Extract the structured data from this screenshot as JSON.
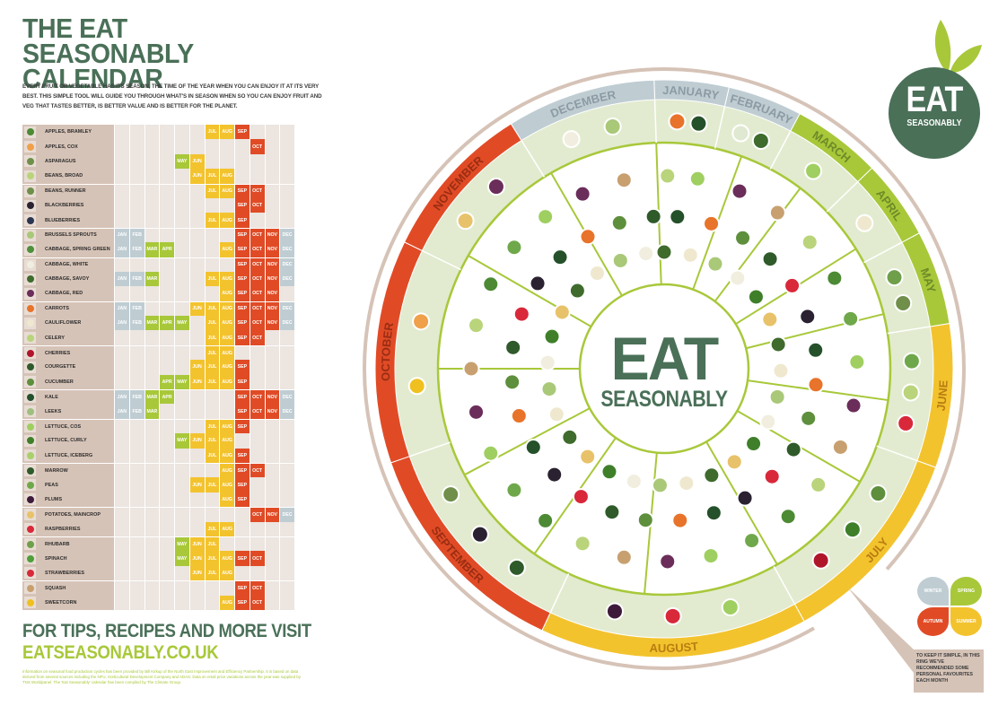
{
  "header": {
    "title": "THE EAT SEASONABLY CALENDAR",
    "intro": "EVERY FRUIT OR VEGETABLE HAS ITS SEASON, THE TIME OF THE YEAR WHEN YOU CAN ENJOY IT AT ITS VERY BEST. THIS SIMPLE TOOL WILL GUIDE YOU THROUGH WHAT'S IN SEASON WHEN SO YOU CAN ENJOY FRUIT AND VEG THAT TASTES BETTER, IS BETTER VALUE AND IS BETTER FOR THE PLANET."
  },
  "colors": {
    "brand_green": "#4a7058",
    "winter": "#bfcdd3",
    "spring": "#a8c83a",
    "summer": "#f3c32e",
    "autumn": "#e04b26",
    "empty": "#ece5e0",
    "name_bg": "#d6c3b7",
    "ring_tan": "#d6c3b7",
    "ring_light_green": "#e2ebcf"
  },
  "month_abbr": [
    "JAN",
    "FEB",
    "MAR",
    "APR",
    "MAY",
    "JUN",
    "JUL",
    "AUG",
    "SEP",
    "OCT",
    "NOV",
    "DEC"
  ],
  "produce": [
    {
      "name": "APPLES, BRAMLEY",
      "icon": "#4c8a34",
      "group": 1,
      "months": [
        7,
        8,
        9
      ]
    },
    {
      "name": "APPLES, COX",
      "icon": "#f0a04a",
      "group": 0,
      "months": [
        10
      ]
    },
    {
      "name": "ASPARAGUS",
      "icon": "#6f8f4a",
      "group": 0,
      "months": [
        5,
        6
      ]
    },
    {
      "name": "BEANS, BROAD",
      "icon": "#b9d47a",
      "group": 0,
      "months": [
        6,
        7,
        8
      ]
    },
    {
      "name": "BEANS, RUNNER",
      "icon": "#6f8f4a",
      "group": 1,
      "months": [
        7,
        8,
        9,
        10
      ]
    },
    {
      "name": "BLACKBERRIES",
      "icon": "#2a2230",
      "group": 0,
      "months": [
        9,
        10
      ]
    },
    {
      "name": "BLUEBERRIES",
      "icon": "#2c3550",
      "group": 0,
      "months": [
        7,
        8,
        9
      ]
    },
    {
      "name": "BRUSSELS SPROUTS",
      "icon": "#a9c878",
      "group": 1,
      "months": [
        1,
        2,
        9,
        10,
        11,
        12
      ]
    },
    {
      "name": "CABBAGE, SPRING GREEN",
      "icon": "#4f8f3a",
      "group": 0,
      "months": [
        1,
        2,
        3,
        4,
        8,
        9,
        10,
        11,
        12
      ]
    },
    {
      "name": "CABBAGE, WHITE",
      "icon": "#f1eedf",
      "group": 1,
      "months": [
        9,
        10,
        11,
        12
      ]
    },
    {
      "name": "CABBAGE, SAVOY",
      "icon": "#3f6b2d",
      "group": 0,
      "months": [
        1,
        2,
        3,
        7,
        8,
        9,
        10,
        11,
        12
      ]
    },
    {
      "name": "CABBAGE, RED",
      "icon": "#6b2d5a",
      "group": 0,
      "months": [
        8,
        9,
        10,
        11
      ]
    },
    {
      "name": "CARROTS",
      "icon": "#e8732a",
      "group": 1,
      "months": [
        1,
        2,
        6,
        7,
        8,
        9,
        10,
        11,
        12
      ]
    },
    {
      "name": "CAULIFLOWER",
      "icon": "#efe8cf",
      "group": 0,
      "months": [
        1,
        2,
        3,
        4,
        5,
        7,
        8,
        9,
        10,
        11,
        12
      ]
    },
    {
      "name": "CELERY",
      "icon": "#b9d47a",
      "group": 0,
      "months": [
        7,
        8,
        9,
        10
      ]
    },
    {
      "name": "CHERRIES",
      "icon": "#b0162a",
      "group": 1,
      "months": [
        7,
        8
      ]
    },
    {
      "name": "COURGETTE",
      "icon": "#2f5a2a",
      "group": 0,
      "months": [
        6,
        7,
        8,
        9
      ]
    },
    {
      "name": "CUCUMBER",
      "icon": "#5e8f3c",
      "group": 0,
      "months": [
        4,
        5,
        6,
        7,
        8,
        9
      ]
    },
    {
      "name": "KALE",
      "icon": "#24502a",
      "group": 1,
      "months": [
        1,
        2,
        3,
        4,
        9,
        10,
        11,
        12
      ]
    },
    {
      "name": "LEEKS",
      "icon": "#9fbf80",
      "group": 0,
      "months": [
        1,
        2,
        3,
        9,
        10,
        11,
        12
      ]
    },
    {
      "name": "LETTUCE, COS",
      "icon": "#9fcf60",
      "group": 1,
      "months": [
        7,
        8,
        9
      ]
    },
    {
      "name": "LETTUCE, CURLY",
      "icon": "#3f7f2a",
      "group": 0,
      "months": [
        5,
        6,
        7,
        8
      ]
    },
    {
      "name": "LETTUCE, ICEBERG",
      "icon": "#a9d06a",
      "group": 0,
      "months": [
        7,
        8,
        9
      ]
    },
    {
      "name": "MARROW",
      "icon": "#2f5a2a",
      "group": 1,
      "months": [
        8,
        9,
        10
      ]
    },
    {
      "name": "PEAS",
      "icon": "#6fa84a",
      "group": 0,
      "months": [
        6,
        7,
        8,
        9
      ]
    },
    {
      "name": "PLUMS",
      "icon": "#3e1a3a",
      "group": 0,
      "months": [
        8,
        9
      ]
    },
    {
      "name": "POTATOES, MAINCROP",
      "icon": "#e8c26a",
      "group": 1,
      "months": [
        10,
        11,
        12
      ]
    },
    {
      "name": "RASPBERRIES",
      "icon": "#d8283a",
      "group": 0,
      "months": [
        7,
        8
      ]
    },
    {
      "name": "RHUBARB",
      "icon": "#6f9f4a",
      "group": 1,
      "months": [
        5,
        6,
        7
      ]
    },
    {
      "name": "SPINACH",
      "icon": "#4f9f3a",
      "group": 0,
      "months": [
        5,
        6,
        7,
        8,
        9,
        10
      ]
    },
    {
      "name": "STRAWBERRIES",
      "icon": "#d8283a",
      "group": 0,
      "months": [
        6,
        7,
        8
      ]
    },
    {
      "name": "SQUASH",
      "icon": "#c8a070",
      "group": 1,
      "months": [
        9,
        10
      ]
    },
    {
      "name": "SWEETCORN",
      "icon": "#f0c020",
      "group": 0,
      "months": [
        8,
        9,
        10
      ]
    }
  ],
  "footer": {
    "cta_line1": "FOR TIPS, RECIPES AND MORE VISIT",
    "cta_line2": "EATSEASONABLY.CO.UK",
    "credits": "Information on seasonal food production cycles has been provided by Bill Kirkup of the North East Improvement and Efficiency Partnership. It is based on data derived from several sources including the NFU, Horticultural Development Company and ADAS. Data on retail price variations across the year was supplied by TNS Worldpanel. The 'Eat Seasonably' calendar has been compiled by The Climate Group."
  },
  "wheel": {
    "center_title": "EAT",
    "center_subtitle": "SEASONABLY",
    "months": [
      {
        "label": "JANUARY",
        "season": "winter",
        "start": -2,
        "end": 13
      },
      {
        "label": "FEBRUARY",
        "season": "winter",
        "start": 13,
        "end": 28
      },
      {
        "label": "MARCH",
        "season": "spring",
        "start": 28,
        "end": 46
      },
      {
        "label": "APRIL",
        "season": "spring",
        "start": 46,
        "end": 62
      },
      {
        "label": "MAY",
        "season": "spring",
        "start": 62,
        "end": 81
      },
      {
        "label": "JUNE",
        "season": "summer",
        "start": 81,
        "end": 110
      },
      {
        "label": "JULY",
        "season": "summer",
        "start": 110,
        "end": 151
      },
      {
        "label": "AUGUST",
        "season": "summer",
        "start": 151,
        "end": 205
      },
      {
        "label": "SEPTEMBER",
        "season": "autumn",
        "start": 205,
        "end": 251
      },
      {
        "label": "OCTOBER",
        "season": "autumn",
        "start": 251,
        "end": 296
      },
      {
        "label": "NOVEMBER",
        "season": "autumn",
        "start": 296,
        "end": 328
      },
      {
        "label": "DECEMBER",
        "season": "winter",
        "start": 328,
        "end": 358
      }
    ],
    "favourites": {
      "JANUARY": [
        "#e8732a",
        "#24502a"
      ],
      "FEBRUARY": [
        "#dfe8d0",
        "#3f6b2d"
      ],
      "MARCH": [
        "#9fcf60"
      ],
      "APRIL": [
        "#efe8cf"
      ],
      "MAY": [
        "#6f9f4a",
        "#6f8f4a"
      ],
      "JUNE": [
        "#6fa84a",
        "#b9d47a",
        "#d8283a"
      ],
      "JULY": [
        "#5e8f3c",
        "#3f7f2a",
        "#b0162a"
      ],
      "AUGUST": [
        "#9fcf60",
        "#d8283a",
        "#3e1a3a"
      ],
      "SEPTEMBER": [
        "#2f5a2a",
        "#2a2230",
        "#6f8f4a"
      ],
      "OCTOBER": [
        "#f0c020",
        "#f0a04a"
      ],
      "NOVEMBER": [
        "#e8c26a",
        "#6b2d5a"
      ],
      "DECEMBER": [
        "#f1eedf",
        "#a9c878"
      ]
    },
    "inner_produce_colors": [
      "#3f6b2d",
      "#24502a",
      "#9fcf60",
      "#efe8cf",
      "#e8732a",
      "#6b2d5a",
      "#a9c878",
      "#5e8f3c",
      "#c8a070",
      "#f1eedf",
      "#2f5a2a",
      "#b9d47a",
      "#3f7f2a",
      "#d8283a",
      "#4c8a34",
      "#e8c26a",
      "#2a2230",
      "#6fa84a"
    ]
  },
  "logo": {
    "title": "EAT",
    "subtitle": "SEASONABLY"
  },
  "legend": {
    "winter": "WINTER",
    "spring": "SPRING",
    "autumn": "AUTUMN",
    "summer": "SUMMER",
    "note": "TO KEEP IT SIMPLE, IN THIS RING WE'VE RECOMMENDED SOME PERSONAL FAVOURITES EACH MONTH"
  }
}
